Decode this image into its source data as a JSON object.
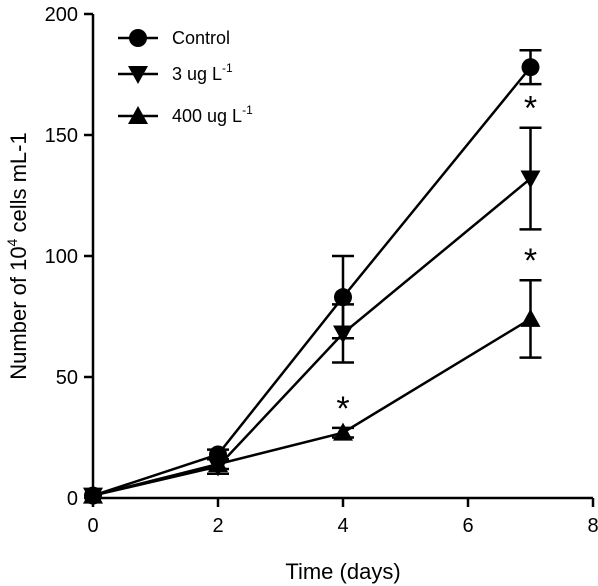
{
  "chart_data": {
    "type": "line",
    "title": "",
    "xlabel": "Time (days)",
    "ylabel": {
      "prefix": "Number of 10",
      "superscript": "4",
      "suffix": " cells mL-1"
    },
    "xlim": [
      0,
      8
    ],
    "ylim": [
      0,
      200
    ],
    "x_ticks": [
      "0",
      "2",
      "4",
      "6",
      "8"
    ],
    "y_ticks": [
      "0",
      "50",
      "100",
      "150",
      "200"
    ],
    "grid": false,
    "legend_position": "top-left",
    "series": [
      {
        "name": "Control",
        "marker": "circle",
        "x": [
          0,
          2,
          4,
          7
        ],
        "y": [
          1,
          18,
          83,
          178
        ],
        "err": [
          0,
          2,
          17,
          7
        ],
        "significant": [
          false,
          false,
          false,
          false
        ]
      },
      {
        "name": "3 ug L",
        "name_sup": "-1",
        "marker": "triangle-down",
        "x": [
          0,
          2,
          4,
          7
        ],
        "y": [
          1,
          13,
          68,
          132
        ],
        "err": [
          0,
          3,
          12,
          21
        ],
        "significant": [
          false,
          false,
          false,
          true
        ]
      },
      {
        "name": "400 ug L",
        "name_sup": "-1",
        "marker": "triangle-up",
        "x": [
          0,
          2,
          4,
          7
        ],
        "y": [
          1,
          14,
          27,
          74
        ],
        "err": [
          0,
          2,
          2,
          16
        ],
        "significant": [
          false,
          false,
          true,
          true
        ]
      }
    ],
    "significance_symbol": "*"
  }
}
